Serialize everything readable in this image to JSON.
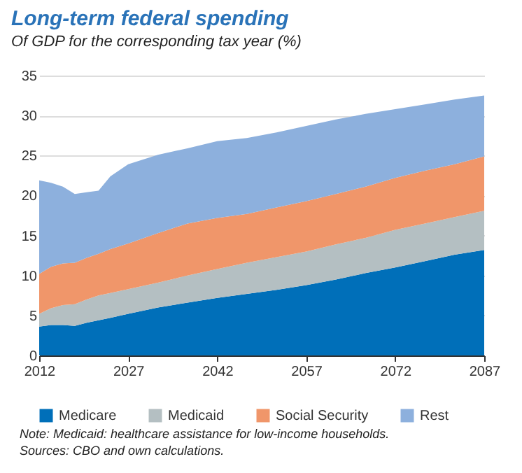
{
  "chart_data": {
    "type": "area",
    "stacked": true,
    "title": "Long-term federal spending",
    "subtitle": "Of GDP for the corresponding tax year (%)",
    "x": [
      2012,
      2014,
      2016,
      2018,
      2020,
      2022,
      2024,
      2027,
      2032,
      2037,
      2042,
      2047,
      2052,
      2057,
      2062,
      2067,
      2072,
      2077,
      2082,
      2087
    ],
    "series": [
      {
        "name": "Medicare",
        "color": "#006fb9",
        "values": [
          3.6,
          3.8,
          3.8,
          3.7,
          4.1,
          4.4,
          4.7,
          5.2,
          6.0,
          6.6,
          7.2,
          7.7,
          8.2,
          8.8,
          9.5,
          10.3,
          11.0,
          11.8,
          12.6,
          13.2
        ]
      },
      {
        "name": "Medicaid",
        "color": "#b4bfc2",
        "values": [
          1.6,
          2.1,
          2.5,
          2.7,
          2.9,
          3.1,
          3.1,
          3.1,
          3.1,
          3.4,
          3.6,
          3.9,
          4.1,
          4.2,
          4.4,
          4.4,
          4.7,
          4.7,
          4.7,
          4.9
        ]
      },
      {
        "name": "Social Security",
        "color": "#f0966a",
        "values": [
          5.0,
          5.2,
          5.2,
          5.2,
          5.2,
          5.2,
          5.5,
          5.7,
          6.2,
          6.5,
          6.4,
          6.1,
          6.2,
          6.3,
          6.3,
          6.4,
          6.5,
          6.6,
          6.6,
          6.8
        ]
      },
      {
        "name": "Rest",
        "color": "#8db0dd",
        "values": [
          11.7,
          10.5,
          9.6,
          8.6,
          8.2,
          7.9,
          9.1,
          9.9,
          9.8,
          9.4,
          9.6,
          9.5,
          9.4,
          9.4,
          9.3,
          9.1,
          8.6,
          8.3,
          8.1,
          7.6
        ]
      }
    ],
    "xlim": [
      2012,
      2087
    ],
    "xticks": [
      2012,
      2027,
      2042,
      2057,
      2072,
      2087
    ],
    "ylim": [
      0,
      35
    ],
    "yticks": [
      0,
      5,
      10,
      15,
      20,
      25,
      30,
      35
    ],
    "grid": "y",
    "legend": "bottom",
    "annotations": [
      "Note: Medicaid: healthcare assistance for low-income households.",
      "Sources: CBO and own calculations."
    ]
  }
}
